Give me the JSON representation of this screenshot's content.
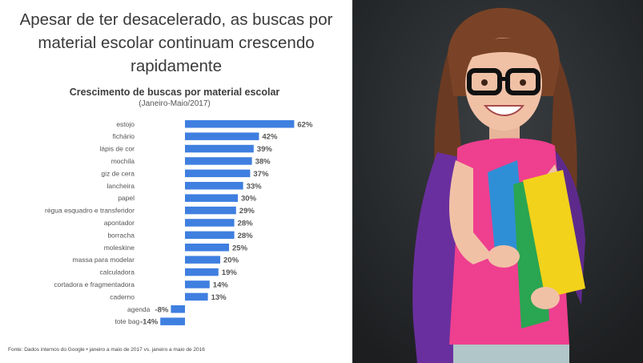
{
  "headline": "Apesar de ter desacelerado, as buscas por material escolar continuam crescendo rapidamente",
  "footnote": "Fonte: Dados internos do Google • janeiro a maio de 2017 vs. janeiro a maio de 2016",
  "colors": {
    "bar": "#3f7fe0",
    "text": "#555555",
    "photo_background": "#25282a"
  },
  "photo": {
    "icon": "girl-with-books-and-backpack"
  },
  "chart_data": {
    "type": "bar",
    "orientation": "horizontal",
    "title": "Crescimento de buscas por material escolar",
    "subtitle": "(Janeiro-Maio/2017)",
    "categories": [
      "estojo",
      "fichário",
      "lápis de cor",
      "mochila",
      "giz de cera",
      "lancheira",
      "papel",
      "régua esquadro e transferidor",
      "apontador",
      "borracha",
      "moleskine",
      "massa para modelar",
      "calculadora",
      "cortadora e fragmentadora",
      "caderno",
      "agenda",
      "tote bag"
    ],
    "values": [
      62,
      42,
      39,
      38,
      37,
      33,
      30,
      29,
      28,
      28,
      25,
      20,
      19,
      14,
      13,
      -8,
      -14
    ],
    "value_labels": [
      "62%",
      "42%",
      "39%",
      "38%",
      "37%",
      "33%",
      "30%",
      "29%",
      "28%",
      "28%",
      "25%",
      "20%",
      "19%",
      "14%",
      "13%",
      "-8%",
      "-14%"
    ],
    "grid": false
  }
}
